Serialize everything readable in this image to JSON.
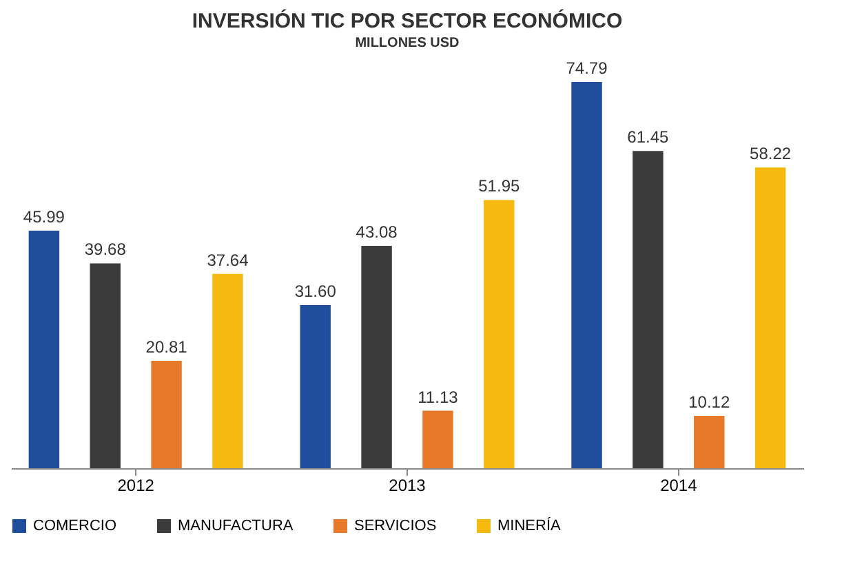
{
  "chart_data": {
    "type": "bar",
    "title": "INVERSIÓN TIC POR SECTOR ECONÓMICO",
    "subtitle": "MILLONES USD",
    "categories": [
      "2012",
      "2013",
      "2014"
    ],
    "series": [
      {
        "name": "COMERCIO",
        "color": "#1f4e9c",
        "values": [
          45.99,
          31.6,
          74.79
        ],
        "value_labels": [
          "45.99",
          "31.60",
          "74.79"
        ]
      },
      {
        "name": "MANUFACTURA",
        "color": "#3b3b3b",
        "values": [
          39.68,
          43.08,
          61.45
        ],
        "value_labels": [
          "39.68",
          "43.08",
          "61.45"
        ]
      },
      {
        "name": "SERVICIOS",
        "color": "#e8792a",
        "values": [
          20.81,
          11.13,
          10.12
        ],
        "value_labels": [
          "20.81",
          "11.13",
          "10.12"
        ]
      },
      {
        "name": "MINERÍA",
        "color": "#f6b90f",
        "values": [
          37.64,
          51.95,
          58.22
        ],
        "value_labels": [
          "37.64",
          "51.95",
          "58.22"
        ]
      }
    ],
    "legend": "bottom",
    "grid": false
  }
}
